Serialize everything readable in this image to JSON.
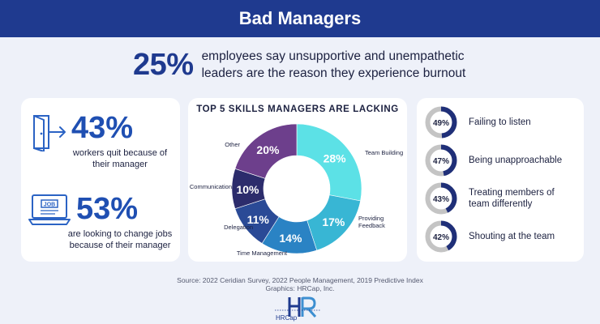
{
  "banner": {
    "title": "Bad Managers"
  },
  "headline": {
    "percent": "25%",
    "text": "employees say unsupportive and unempathetic leaders are the reason they experience burnout"
  },
  "stats": [
    {
      "percent": "43%",
      "text": "workers quit because of their manager",
      "icon": "door-exit-icon"
    },
    {
      "percent": "53%",
      "text": "are looking to change jobs because of their manager",
      "icon": "laptop-job-icon"
    }
  ],
  "chart_data": [
    {
      "type": "pie",
      "title": "TOP 5 SKILLS MANAGERS ARE LACKING",
      "categories": [
        "Team Building",
        "Providing Feedback",
        "Time Management",
        "Delegation",
        "Communication",
        "Other"
      ],
      "values": [
        28,
        17,
        14,
        11,
        10,
        20
      ],
      "value_labels": [
        "28%",
        "17%",
        "14%",
        "11%",
        "10%",
        "20%"
      ],
      "colors": [
        "#5ce1e6",
        "#38b6d4",
        "#2a83c4",
        "#2a4a96",
        "#2c2c6c",
        "#6d3f8c"
      ],
      "donut": true
    },
    {
      "type": "pie",
      "title": "",
      "categories": [
        "Failing to listen",
        "Being unapproachable",
        "Treating members of team differently",
        "Shouting at the team"
      ],
      "values": [
        49,
        47,
        43,
        42
      ],
      "value_labels": [
        "49%",
        "47%",
        "43%",
        "42%"
      ],
      "colors": {
        "fill": "#1f2f78",
        "track": "#c4c4c4"
      }
    }
  ],
  "source": {
    "line1": "Source: 2022 Ceridian Survey, 2022 People Management, 2019 Predictive Index",
    "line2": "Graphics: HRCap, Inc."
  },
  "logo": {
    "text": "HRCap"
  }
}
